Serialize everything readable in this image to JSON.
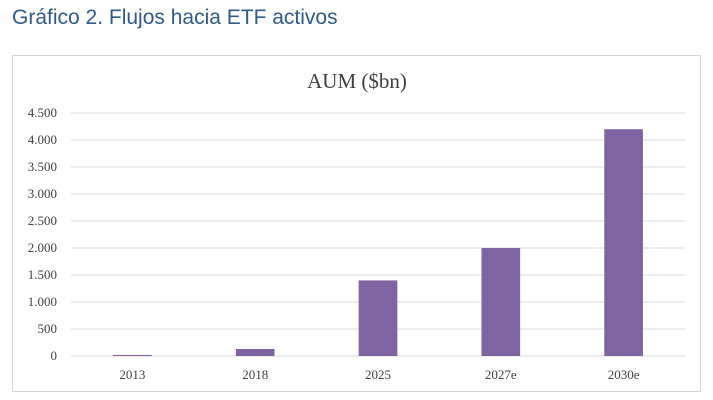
{
  "heading": "Gráfico 2. Flujos hacia ETF activos",
  "chart_data": {
    "type": "bar",
    "title": "AUM ($bn)",
    "xlabel": "",
    "ylabel": "",
    "categories": [
      "2013",
      "2018",
      "2025",
      "2027e",
      "2030e"
    ],
    "values": [
      20,
      130,
      1400,
      2000,
      4200
    ],
    "ylim": [
      0,
      4500
    ],
    "yticks": [
      0,
      500,
      1000,
      1500,
      2000,
      2500,
      3000,
      3500,
      4000,
      4500
    ],
    "ytick_labels": [
      "0",
      "500",
      "1.000",
      "1.500",
      "2.000",
      "2.500",
      "3.000",
      "3.500",
      "4.000",
      "4.500"
    ],
    "grid": true,
    "legend": "none",
    "bar_color": "#8064a2",
    "grid_color": "#d9d9d9"
  }
}
